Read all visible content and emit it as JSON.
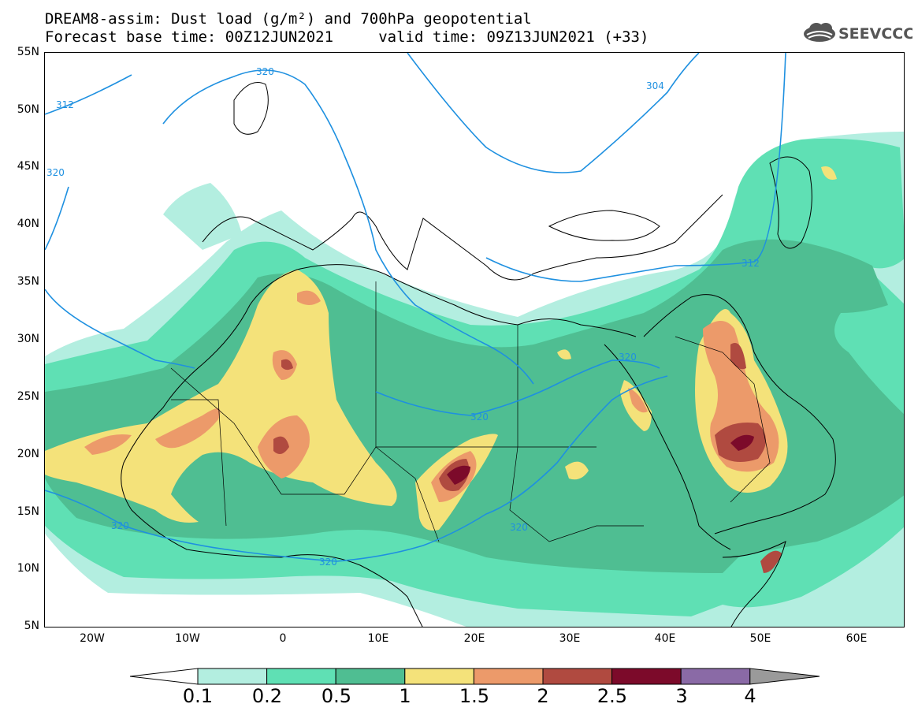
{
  "header": {
    "title_line1": "DREAM8-assim: Dust load (g/m²) and 700hPa geopotential",
    "title_line2": "Forecast base time: 00Z12JUN2021     valid time: 09Z13JUN2021 (+33)",
    "logo_text": "SEEVCCC",
    "logo_icon": "cloud-logo-icon"
  },
  "map": {
    "lon_range": [
      -25,
      65
    ],
    "lat_range": [
      5,
      55
    ],
    "lat_labels": [
      "55N",
      "50N",
      "45N",
      "40N",
      "35N",
      "30N",
      "25N",
      "20N",
      "15N",
      "10N",
      "5N"
    ],
    "lon_labels": [
      "20W",
      "10W",
      "0",
      "10E",
      "20E",
      "30E",
      "40E",
      "50E",
      "60E"
    ],
    "contour_labels": [
      "320",
      "312",
      "320",
      "304",
      "312",
      "320",
      "320",
      "320",
      "320",
      "320"
    ]
  },
  "colorbar": {
    "levels": [
      "0.1",
      "0.2",
      "0.5",
      "1",
      "1.5",
      "2",
      "2.5",
      "3",
      "4"
    ],
    "colors": [
      "#ffffff",
      "#b3eee0",
      "#5fe0b4",
      "#4fbe92",
      "#f4e27a",
      "#ec9a6a",
      "#b04a40",
      "#7c0a2a",
      "#8a6aa6",
      "#9a9a9a"
    ]
  }
}
